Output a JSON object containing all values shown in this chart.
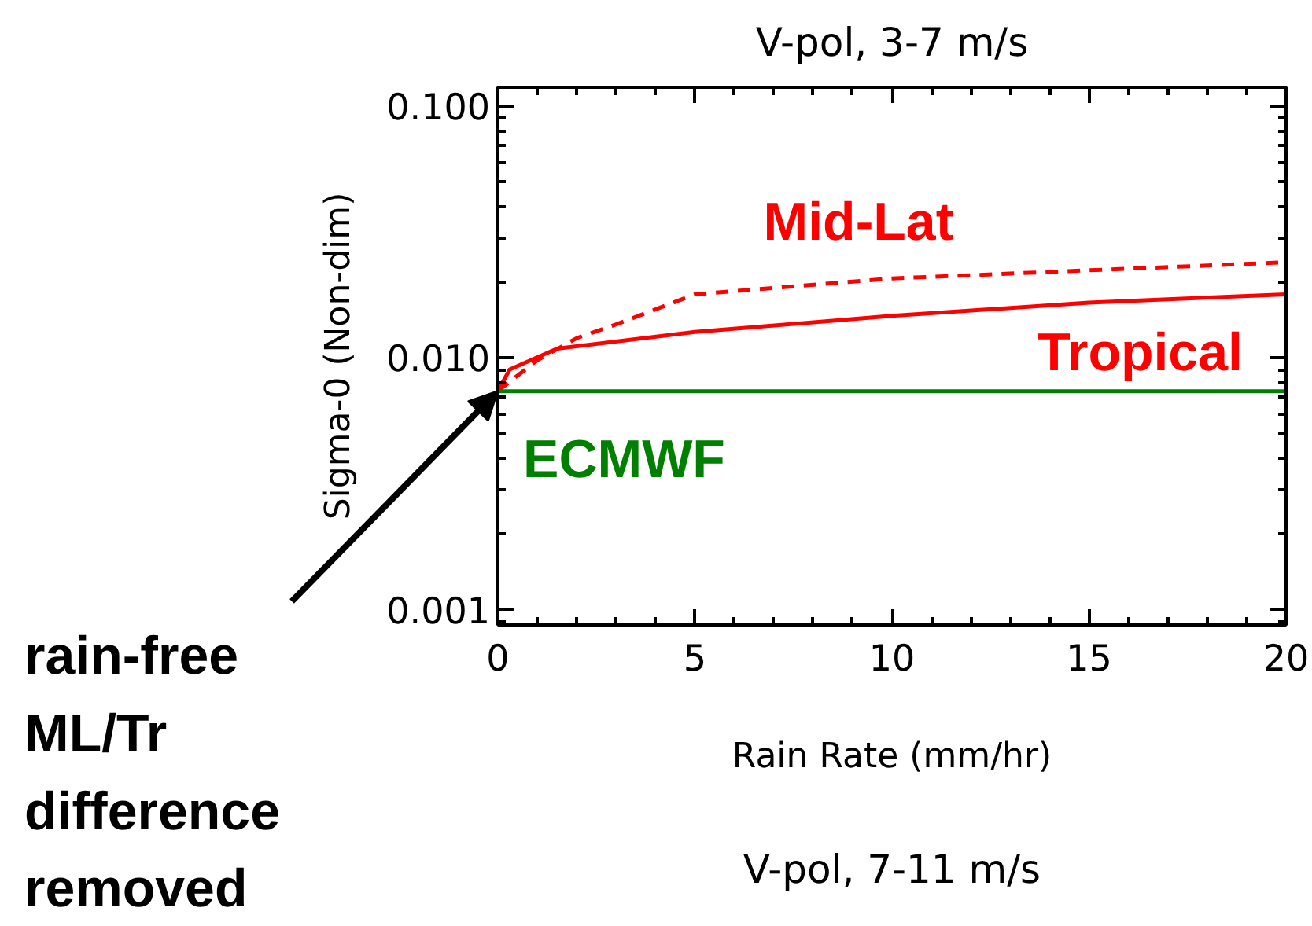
{
  "chart_data": {
    "type": "line",
    "title": "V-pol, 3-7 m/s",
    "xlabel": "Rain Rate (mm/hr)",
    "ylabel": "Sigma-0 (Non-dim)",
    "log": "y",
    "xlim": [
      0,
      20
    ],
    "ylim": [
      0.00087,
      0.119
    ],
    "xticks": [
      0,
      5,
      10,
      15,
      20
    ],
    "yticks": [
      {
        "value": 0.001,
        "label": "0.001"
      },
      {
        "value": 0.01,
        "label": "0.010"
      },
      {
        "value": 0.1,
        "label": "0.100"
      }
    ],
    "grid": false,
    "series": [
      {
        "name": "Mid-Lat",
        "color": "#ff0000",
        "line_style": "dashed",
        "x": [
          0,
          1,
          2,
          3,
          5,
          10,
          15,
          20
        ],
        "values": [
          0.0074,
          0.0098,
          0.012,
          0.0136,
          0.0179,
          0.0207,
          0.0223,
          0.024
        ]
      },
      {
        "name": "Tropical",
        "color": "#ff0000",
        "line_style": "solid",
        "x": [
          0,
          0.3,
          1.5,
          5,
          10,
          15,
          20
        ],
        "values": [
          0.0074,
          0.009,
          0.0109,
          0.0127,
          0.0147,
          0.0166,
          0.0179
        ]
      },
      {
        "name": "ECMWF",
        "color": "#008000",
        "line_style": "solid",
        "x": [
          0,
          20
        ],
        "values": [
          0.00738,
          0.00738
        ]
      }
    ],
    "annotations": [
      {
        "text": "rain-free\nML/Tr\ndifference\nremoved",
        "x": 0,
        "y": 0.0074
      },
      "V-pol, 7-11 m/s"
    ]
  }
}
